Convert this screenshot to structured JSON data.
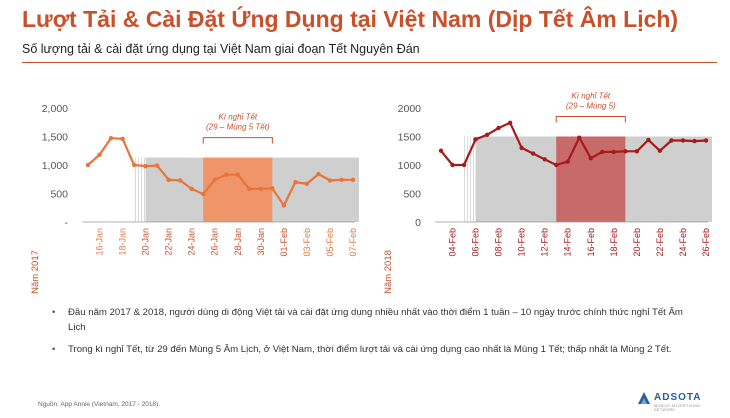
{
  "title": "Lượt Tải & Cài Đặt Ứng Dụng tại Việt Nam (Dịp Tết Âm Lịch)",
  "subtitle": "Số lượng tải & cài đặt ứng dụng tại Việt Nam giai đoạn Tết Nguyên Đán",
  "colors": {
    "accent": "#c9502a",
    "line2017": "#e8743b",
    "line2018": "#a51b1b",
    "band": "#cfcfcf",
    "tet2017": "#f0956a",
    "tet2018": "#c86a6a"
  },
  "chart_data": [
    {
      "type": "line",
      "year_label": "Năm 2017",
      "annotation": [
        "Kì nghỉ Tết",
        "(29 – Mùng 5 Tết)"
      ],
      "y_ticks": [
        "2,000",
        "1,500",
        "1,000",
        "500",
        "-"
      ],
      "ylim": [
        0,
        2000
      ],
      "x_tick_labels": [
        "16-Jan",
        "18-Jan",
        "20-Jan",
        "22-Jan",
        "24-Jan",
        "26-Jan",
        "28-Jan",
        "30-Jan",
        "01-Feb",
        "03-Feb",
        "05-Feb",
        "07-Feb"
      ],
      "x_label_colors": [
        "#e07a48",
        "#e07a48",
        "#c9502a",
        "#c9502a",
        "#c9502a",
        "#c9502a",
        "#c9502a",
        "#c9502a",
        "#c9502a",
        "#e07a48",
        "#e07a48",
        "#e07a48"
      ],
      "n_points": 24,
      "values": [
        1000,
        1180,
        1470,
        1460,
        1000,
        980,
        990,
        740,
        730,
        580,
        490,
        740,
        830,
        830,
        580,
        580,
        590,
        290,
        700,
        670,
        840,
        730,
        740,
        740
      ],
      "shaded_band": {
        "from": 4,
        "to": 23,
        "level": 1130
      },
      "tet_band": {
        "from": 10,
        "to": 16,
        "level": 1130
      },
      "hatch_band": {
        "from": 4,
        "to": 5
      }
    },
    {
      "type": "line",
      "year_label": "Năm 2018",
      "annotation": [
        "Kì nghỉ Tết",
        "(29 – Mùng 5)"
      ],
      "y_ticks": [
        "2000",
        "1500",
        "1000",
        "500",
        "0"
      ],
      "ylim": [
        0,
        2000
      ],
      "x_tick_labels": [
        "04-Feb",
        "06-Feb",
        "08-Feb",
        "10-Feb",
        "12-Feb",
        "14-Feb",
        "16-Feb",
        "18-Feb",
        "20-Feb",
        "22-Feb",
        "24-Feb",
        "26-Feb"
      ],
      "x_label_colors": [
        "#a51b1b",
        "#a51b1b",
        "#a51b1b",
        "#a51b1b",
        "#a51b1b",
        "#a51b1b",
        "#a51b1b",
        "#a51b1b",
        "#a51b1b",
        "#a51b1b",
        "#a51b1b",
        "#a51b1b"
      ],
      "n_points": 24,
      "values": [
        1250,
        1000,
        1000,
        1450,
        1530,
        1650,
        1740,
        1300,
        1200,
        1100,
        1000,
        1060,
        1480,
        1120,
        1230,
        1230,
        1240,
        1240,
        1440,
        1250,
        1430,
        1430,
        1420,
        1430
      ],
      "shaded_band": {
        "from": 2,
        "to": 23,
        "level": 1500
      },
      "tet_band": {
        "from": 10,
        "to": 16,
        "level": 1500
      },
      "hatch_band": {
        "from": 2,
        "to": 3
      }
    }
  ],
  "bullets": [
    "Đầu năm 2017 & 2018, người dùng di động Việt tải và cài đặt ứng dụng nhiều nhất vào thời điểm 1 tuần – 10 ngày trước chính thức nghỉ Tết Âm Lịch",
    "Trong kì nghỉ Tết, từ 29 đến Mùng 5 Âm Lịch, ở Việt Nam, thời điểm lượt tải và cài ứng dụng cao nhất là Mùng 1 Tết; thấp nhất là Mùng 2 Tết."
  ],
  "bullet_marker": "•",
  "source": "Nguồn: App Annie (Vietnam, 2017 - 2018).",
  "logo": {
    "word": "ADSOTA",
    "tagline": "MOBILE ADVERTISING NETWORK"
  }
}
